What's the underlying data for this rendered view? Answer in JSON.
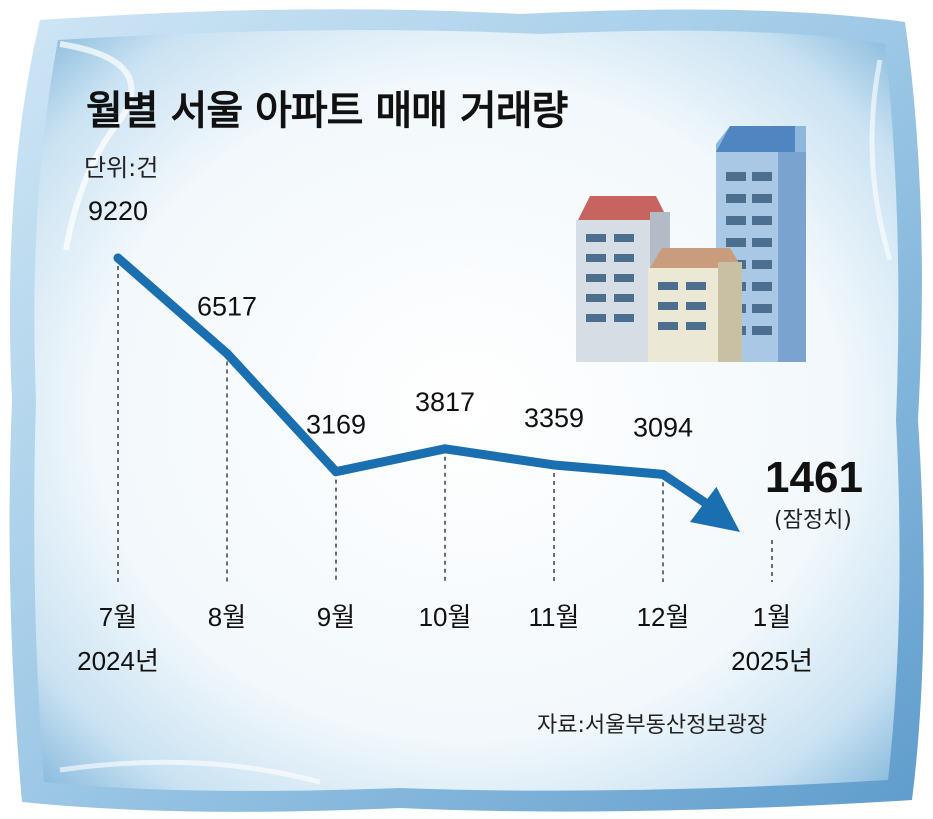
{
  "colors": {
    "line": "#1a6fb0",
    "frame_outer": "#a9cfe8",
    "frame_inner": "#f3f9fd",
    "text": "#111111"
  },
  "header": {
    "title": "월별 서울 아파트 매매 거래량",
    "unit": "단위:건"
  },
  "footer": {
    "source": "자료:서울부동산정보광장"
  },
  "illustration": {
    "icon": "apartment-buildings-icon"
  },
  "chart_data": {
    "type": "line",
    "title": "월별 서울 아파트 매매 거래량",
    "ylabel": "단위:건",
    "categories": [
      "7월",
      "8월",
      "9월",
      "10월",
      "11월",
      "12월",
      "1월"
    ],
    "year_labels": [
      "2024년",
      "",
      "",
      "",
      "",
      "",
      "2025년"
    ],
    "value_labels": [
      "9220",
      "6517",
      "3169",
      "3817",
      "3359",
      "3094",
      "1461"
    ],
    "values": [
      9220,
      6517,
      3169,
      3817,
      3359,
      3094,
      1461
    ],
    "last_point_note": "(잠정치)",
    "grid": false,
    "legend": "none",
    "ylim": [
      0,
      10000
    ]
  }
}
